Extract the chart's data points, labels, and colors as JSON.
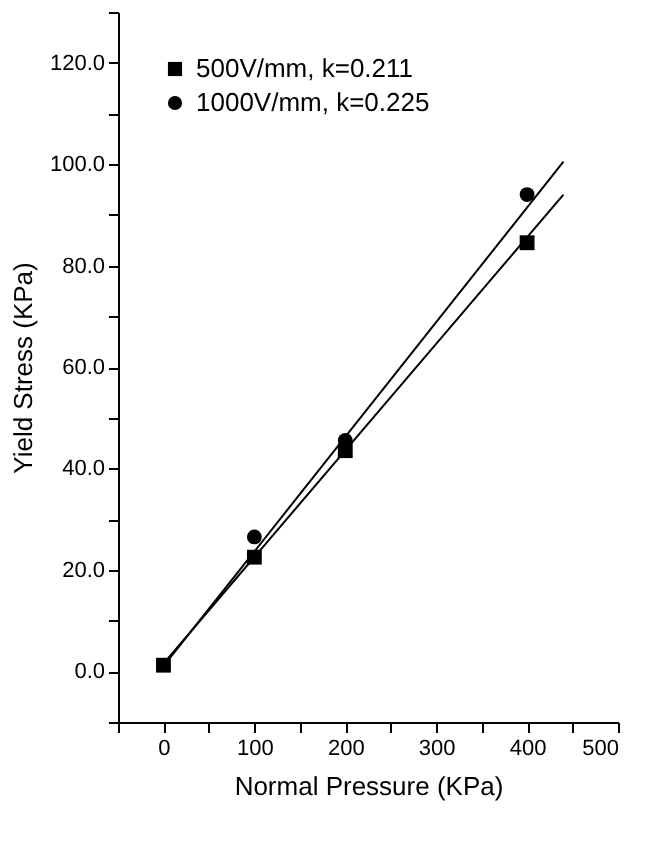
{
  "chart_data": {
    "type": "scatter",
    "xlabel": "Normal Pressure (KPa)",
    "ylabel": "Yield Stress (KPa)",
    "xlim": [
      -50,
      500
    ],
    "ylim": [
      -10,
      130
    ],
    "xticks": [
      {
        "value": -50,
        "label": null
      },
      0,
      {
        "value": 50,
        "label": null
      },
      100,
      {
        "value": 150,
        "label": null
      },
      200,
      {
        "value": 250,
        "label": null
      },
      300,
      {
        "value": 350,
        "label": null
      },
      400,
      {
        "value": 450,
        "label": null
      },
      500
    ],
    "yticks": [
      {
        "value": -10,
        "label": null
      },
      {
        "value": 0,
        "label": "0.0"
      },
      {
        "value": 10,
        "label": null
      },
      {
        "value": 20,
        "label": "20.0"
      },
      {
        "value": 30,
        "label": null
      },
      {
        "value": 40,
        "label": "40.0"
      },
      {
        "value": 50,
        "label": null
      },
      {
        "value": 60,
        "label": "60.0"
      },
      {
        "value": 70,
        "label": null
      },
      {
        "value": 80,
        "label": "80.0"
      },
      {
        "value": 90,
        "label": null
      },
      {
        "value": 100,
        "label": "100.0"
      },
      {
        "value": 110,
        "label": null
      },
      {
        "value": 120,
        "label": "120.0"
      },
      {
        "value": 130,
        "label": null
      }
    ],
    "grid": false,
    "legend": "top left",
    "series": [
      {
        "name": "500V/mm, k=0.211",
        "color": "#000000",
        "marker": "square",
        "x": [
          0,
          100,
          200,
          400
        ],
        "values": [
          1.2,
          22.5,
          43.5,
          84.5
        ]
      },
      {
        "name": "1000V/mm, k=0.225",
        "color": "#000000",
        "marker": "circle",
        "x": [
          100,
          200,
          400
        ],
        "values": [
          26.5,
          45.5,
          94
        ]
      },
      {
        "type": "line",
        "color": "#000000",
        "marker": "none",
        "x": [
          0,
          440
        ],
        "values": [
          1.5,
          94
        ]
      },
      {
        "type": "line",
        "color": "#000000",
        "marker": "none",
        "x": [
          0,
          440
        ],
        "values": [
          1,
          100.5
        ]
      }
    ]
  }
}
